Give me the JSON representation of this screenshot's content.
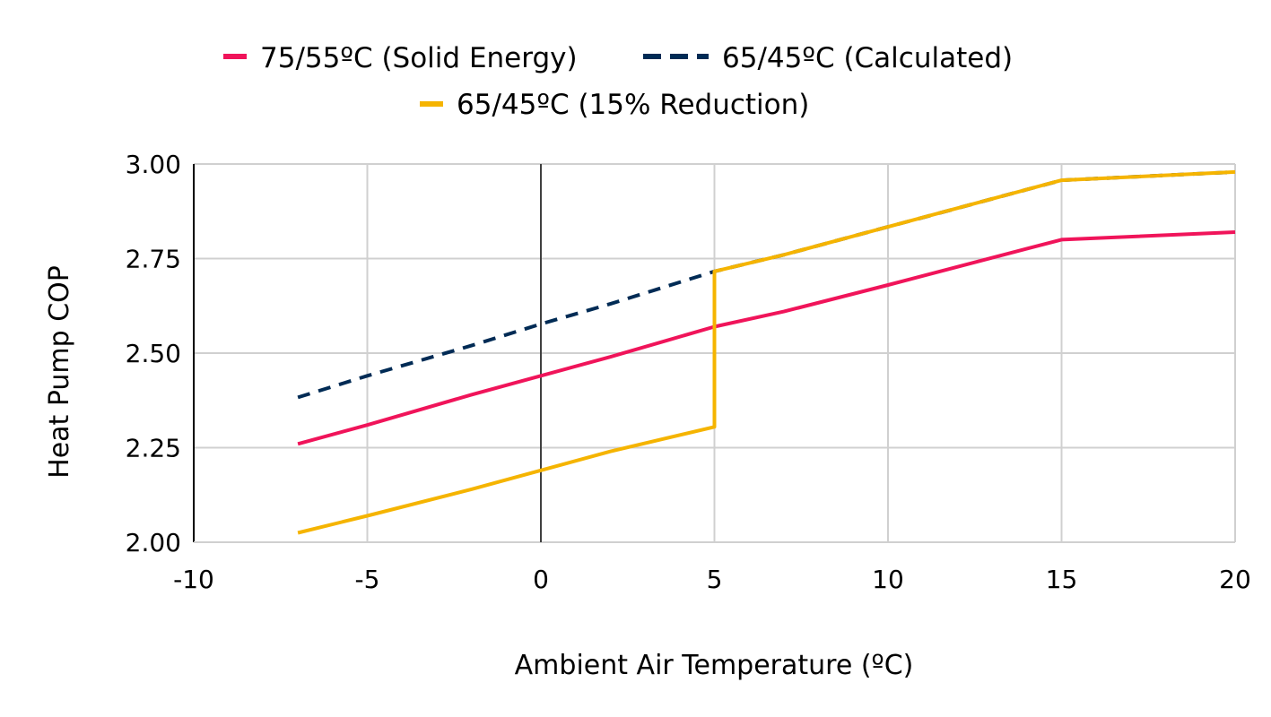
{
  "chart_data": {
    "type": "line",
    "title": "",
    "xlabel": "Ambient Air Temperature (ºC)",
    "ylabel": "Heat Pump COP",
    "xlim": [
      -10,
      20
    ],
    "ylim": [
      2.0,
      3.0
    ],
    "x_ticks": [
      -10,
      -5,
      0,
      5,
      10,
      15,
      20
    ],
    "x_tick_labels": [
      "-10",
      "-5",
      "0",
      "5",
      "10",
      "15",
      "20"
    ],
    "y_ticks": [
      2.0,
      2.25,
      2.5,
      2.75,
      3.0
    ],
    "y_tick_labels": [
      "2.00",
      "2.25",
      "2.50",
      "2.75",
      "3.00"
    ],
    "grid": true,
    "legend_position": "top",
    "series": [
      {
        "name": "75/55ºC (Solid Energy)",
        "color": "#f0145a",
        "dash": "solid",
        "x": [
          -7,
          -5,
          -2,
          0,
          2,
          5,
          7,
          10,
          15,
          20
        ],
        "y": [
          2.26,
          2.31,
          2.39,
          2.44,
          2.49,
          2.57,
          2.61,
          2.68,
          2.8,
          2.82
        ]
      },
      {
        "name": "65/45ºC (Calculated)",
        "color": "#002b55",
        "dash": "dashed",
        "x": [
          -7,
          -5,
          -2,
          0,
          2,
          5,
          7,
          10,
          15,
          20
        ],
        "y": [
          2.383,
          2.44,
          2.52,
          2.577,
          2.63,
          2.716,
          2.76,
          2.834,
          2.957,
          2.979
        ]
      },
      {
        "name": "65/45ºC (15% Reduction)",
        "color": "#f5b400",
        "dash": "solid",
        "x": [
          -7,
          -5,
          -2,
          0,
          2,
          5,
          5,
          7,
          10,
          15,
          20
        ],
        "y": [
          2.025,
          2.07,
          2.14,
          2.19,
          2.24,
          2.305,
          2.716,
          2.76,
          2.834,
          2.957,
          2.979
        ]
      }
    ]
  }
}
